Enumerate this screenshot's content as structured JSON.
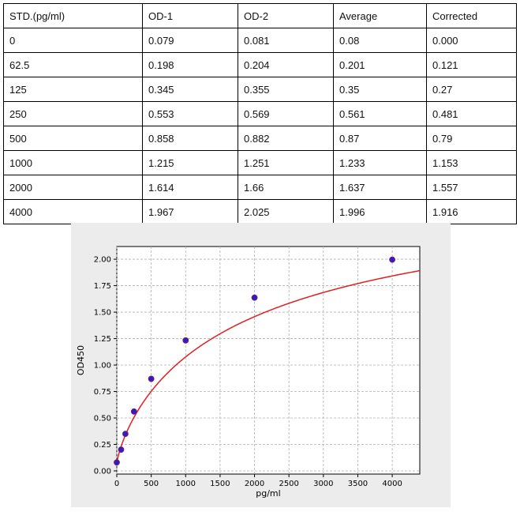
{
  "table": {
    "headers": [
      "STD.(pg/ml)",
      "OD-1",
      "OD-2",
      "Average",
      "Corrected"
    ],
    "rows": [
      [
        "0",
        "0.079",
        "0.081",
        "0.08",
        "0.000"
      ],
      [
        "62.5",
        "0.198",
        "0.204",
        "0.201",
        "0.121"
      ],
      [
        "125",
        "0.345",
        "0.355",
        "0.35",
        "0.27"
      ],
      [
        "250",
        "0.553",
        "0.569",
        "0.561",
        "0.481"
      ],
      [
        "500",
        "0.858",
        "0.882",
        "0.87",
        "0.79"
      ],
      [
        "1000",
        "1.215",
        "1.251",
        "1.233",
        "1.153"
      ],
      [
        "2000",
        "1.614",
        "1.66",
        "1.637",
        "1.557"
      ],
      [
        "4000",
        "1.967",
        "2.025",
        "1.996",
        "1.916"
      ]
    ]
  },
  "chart_data": {
    "type": "scatter",
    "title": "",
    "xlabel": "pg/ml",
    "ylabel": "OD450",
    "xlim": [
      0,
      4400
    ],
    "ylim": [
      -0.03,
      2.12
    ],
    "xticks": [
      0,
      500,
      1000,
      1500,
      2000,
      2500,
      3000,
      3500,
      4000
    ],
    "yticks": [
      0.0,
      0.25,
      0.5,
      0.75,
      1.0,
      1.25,
      1.5,
      1.75,
      2.0
    ],
    "xtick_labels": [
      "0",
      "500",
      "1000",
      "1500",
      "2000",
      "2500",
      "3000",
      "3500",
      "4000"
    ],
    "ytick_labels": [
      "0.00",
      "0.25",
      "0.50",
      "0.75",
      "1.00",
      "1.25",
      "1.50",
      "1.75",
      "2.00"
    ],
    "grid": true,
    "points": [
      {
        "x": 0,
        "y": 0.08
      },
      {
        "x": 62.5,
        "y": 0.201
      },
      {
        "x": 125,
        "y": 0.35
      },
      {
        "x": 250,
        "y": 0.561
      },
      {
        "x": 500,
        "y": 0.87
      },
      {
        "x": 1000,
        "y": 1.233
      },
      {
        "x": 2000,
        "y": 1.637
      },
      {
        "x": 4000,
        "y": 1.996
      }
    ],
    "colors": {
      "points": "#2a1fc8",
      "point_edge": "#7a1a6a",
      "curve": "#e02020",
      "background": "#ececec"
    }
  }
}
